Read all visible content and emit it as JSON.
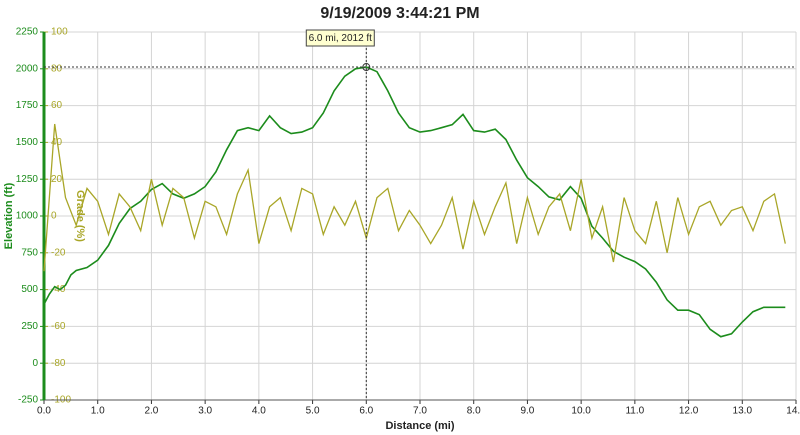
{
  "chart_data": {
    "type": "line",
    "title": "9/19/2009 3:44:21 PM",
    "xlabel": "Distance (mi)",
    "ylabel": "Elevation (ft)",
    "y2label": "Grade (%)",
    "xlim": [
      0,
      14
    ],
    "xticks": [
      {
        "value": 0,
        "label": "0.0"
      },
      {
        "value": 1,
        "label": "1.0"
      },
      {
        "value": 2,
        "label": "2.0"
      },
      {
        "value": 3,
        "label": "3.0"
      },
      {
        "value": 4,
        "label": "4.0"
      },
      {
        "value": 5,
        "label": "5.0"
      },
      {
        "value": 6,
        "label": "6.0"
      },
      {
        "value": 7,
        "label": "7.0"
      },
      {
        "value": 8,
        "label": "8.0"
      },
      {
        "value": 9,
        "label": "9.0"
      },
      {
        "value": 10,
        "label": "10.0"
      },
      {
        "value": 11,
        "label": "11.0"
      },
      {
        "value": 12,
        "label": "12.0"
      },
      {
        "value": 13,
        "label": "13.0"
      },
      {
        "value": 14,
        "label": "14.0"
      }
    ],
    "ylim": [
      -250,
      2250
    ],
    "yticks": [
      -250,
      0,
      250,
      500,
      750,
      1000,
      1250,
      1500,
      1750,
      2000,
      2250
    ],
    "y2lim": [
      -100,
      100
    ],
    "y2ticks": [
      -100,
      -80,
      -60,
      -40,
      -20,
      0,
      20,
      40,
      60,
      80,
      100
    ],
    "grid": true,
    "annotation": {
      "text": "6.0 mi, 2012 ft",
      "x": 6.0,
      "y": 2012
    },
    "series": [
      {
        "name": "Elevation",
        "color": "#1c8c1c",
        "axis": "y",
        "x": [
          0,
          0.1,
          0.2,
          0.3,
          0.4,
          0.5,
          0.6,
          0.8,
          1.0,
          1.2,
          1.4,
          1.6,
          1.8,
          2.0,
          2.2,
          2.4,
          2.6,
          2.8,
          3.0,
          3.2,
          3.4,
          3.6,
          3.8,
          4.0,
          4.2,
          4.4,
          4.6,
          4.8,
          5.0,
          5.2,
          5.4,
          5.6,
          5.8,
          6.0,
          6.2,
          6.4,
          6.6,
          6.8,
          7.0,
          7.2,
          7.4,
          7.6,
          7.8,
          8.0,
          8.2,
          8.4,
          8.6,
          8.8,
          9.0,
          9.2,
          9.4,
          9.6,
          9.8,
          10.0,
          10.2,
          10.4,
          10.6,
          10.8,
          11.0,
          11.2,
          11.4,
          11.6,
          11.8,
          12.0,
          12.2,
          12.4,
          12.6,
          12.8,
          13.0,
          13.2,
          13.4,
          13.6,
          13.8
        ],
        "values": [
          400,
          470,
          520,
          500,
          530,
          600,
          630,
          650,
          700,
          800,
          950,
          1050,
          1100,
          1180,
          1220,
          1150,
          1120,
          1150,
          1200,
          1300,
          1450,
          1580,
          1600,
          1580,
          1680,
          1600,
          1560,
          1570,
          1600,
          1700,
          1850,
          1950,
          2000,
          2012,
          1980,
          1850,
          1700,
          1600,
          1570,
          1580,
          1600,
          1620,
          1690,
          1580,
          1570,
          1590,
          1520,
          1380,
          1260,
          1200,
          1130,
          1110,
          1200,
          1120,
          930,
          850,
          760,
          720,
          690,
          640,
          550,
          430,
          360,
          360,
          330,
          230,
          180,
          200,
          280,
          350,
          380,
          380,
          380
        ]
      },
      {
        "name": "Grade",
        "color": "#a9a628",
        "axis": "y2",
        "x": [
          0,
          0.2,
          0.4,
          0.6,
          0.8,
          1.0,
          1.2,
          1.4,
          1.6,
          1.8,
          2.0,
          2.2,
          2.4,
          2.6,
          2.8,
          3.0,
          3.2,
          3.4,
          3.6,
          3.8,
          4.0,
          4.2,
          4.4,
          4.6,
          4.8,
          5.0,
          5.2,
          5.4,
          5.6,
          5.8,
          6.0,
          6.2,
          6.4,
          6.6,
          6.8,
          7.0,
          7.2,
          7.4,
          7.6,
          7.8,
          8.0,
          8.2,
          8.4,
          8.6,
          8.8,
          9.0,
          9.2,
          9.4,
          9.6,
          9.8,
          10.0,
          10.2,
          10.4,
          10.6,
          10.8,
          11.0,
          11.2,
          11.4,
          11.6,
          11.8,
          12.0,
          12.2,
          12.4,
          12.6,
          12.8,
          13.0,
          13.2,
          13.4,
          13.6,
          13.8
        ],
        "values": [
          -30,
          50,
          10,
          -5,
          15,
          8,
          -10,
          12,
          5,
          -8,
          20,
          -5,
          15,
          10,
          -12,
          8,
          5,
          -10,
          12,
          25,
          -15,
          5,
          10,
          -8,
          15,
          12,
          -10,
          5,
          -5,
          8,
          -12,
          10,
          15,
          -8,
          3,
          -5,
          -15,
          -5,
          10,
          -18,
          8,
          -10,
          5,
          18,
          -15,
          10,
          -10,
          5,
          12,
          -8,
          20,
          -12,
          5,
          -25,
          10,
          -8,
          -15,
          8,
          -20,
          10,
          -10,
          5,
          8,
          -5,
          3,
          5,
          -8,
          8,
          12,
          -15
        ]
      }
    ]
  }
}
